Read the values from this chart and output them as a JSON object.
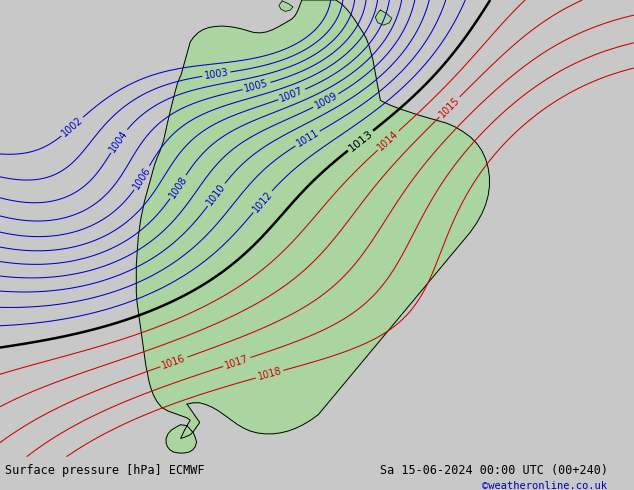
{
  "title_left": "Surface pressure [hPa] ECMWF",
  "title_right": "Sa 15-06-2024 00:00 UTC (00+240)",
  "watermark": "©weatheronline.co.uk",
  "bg_color": "#c8c8c8",
  "land_color": "#aad4a0",
  "contour_blue_color": "#0000cc",
  "contour_red_color": "#cc0000",
  "contour_black_color": "#000000",
  "footer_bg": "#b8e0b8",
  "figsize": [
    6.34,
    4.9
  ],
  "dpi": 100,
  "blue_levels": [
    1002,
    1003,
    1004,
    1005,
    1006,
    1007,
    1008,
    1009,
    1010,
    1011,
    1012
  ],
  "red_levels": [
    1014,
    1015,
    1016,
    1017,
    1018
  ],
  "black_levels": [
    1013
  ]
}
